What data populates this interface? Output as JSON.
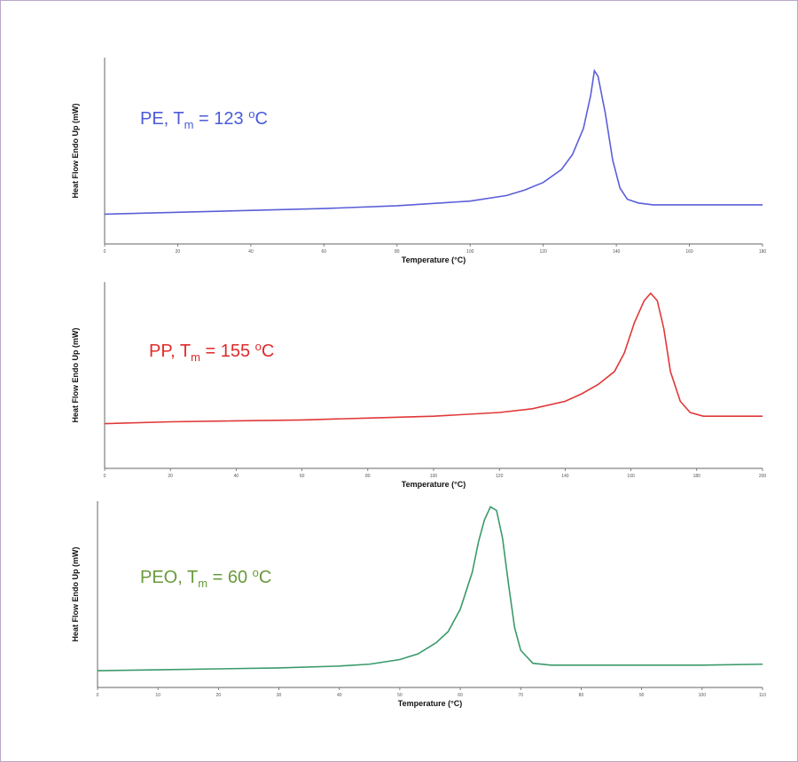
{
  "chart_data": [
    {
      "type": "line",
      "ylabel": "Heat Flow Endo Up (mW)",
      "xlabel": "Temperature (°C)",
      "annotation": {
        "prefix": "PE, T",
        "sub": "m",
        "mid": " = 123 ",
        "sup": "o",
        "suffix": "C",
        "color": "#4a5bd8"
      },
      "x": [
        0,
        20,
        40,
        60,
        80,
        100,
        110,
        115,
        120,
        125,
        128,
        131,
        133,
        134,
        135,
        137,
        139,
        141,
        143,
        146,
        150,
        160,
        180
      ],
      "series": [
        {
          "color": "#5a5fd8",
          "values": [
            16,
            17,
            18,
            19,
            20.5,
            23,
            26,
            29,
            33,
            40,
            48,
            62,
            80,
            93,
            90,
            70,
            45,
            30,
            24,
            22,
            21,
            21,
            21
          ]
        }
      ],
      "xlim": [
        0,
        180
      ],
      "xticks": [
        0,
        20,
        40,
        60,
        80,
        100,
        120,
        140,
        160,
        180
      ],
      "ylim": [
        0,
        100
      ]
    },
    {
      "type": "line",
      "ylabel": "Heat Flow Endo Up (mW)",
      "xlabel": "Temperature (°C)",
      "annotation": {
        "prefix": "PP, T",
        "sub": "m",
        "mid": " = 155 ",
        "sup": "o",
        "suffix": "C",
        "color": "#e02a2a"
      },
      "x": [
        0,
        20,
        40,
        60,
        80,
        100,
        120,
        130,
        140,
        145,
        150,
        155,
        158,
        161,
        164,
        166,
        168,
        170,
        172,
        175,
        178,
        182,
        190,
        200
      ],
      "series": [
        {
          "color": "#e03838",
          "values": [
            24,
            25,
            25.5,
            26,
            27,
            28,
            30,
            32,
            36,
            40,
            45,
            52,
            62,
            78,
            90,
            94,
            90,
            75,
            52,
            36,
            30,
            28,
            28,
            28
          ]
        }
      ],
      "xlim": [
        0,
        200
      ],
      "xticks": [
        0,
        20,
        40,
        60,
        80,
        100,
        120,
        140,
        160,
        180,
        200
      ],
      "ylim": [
        0,
        100
      ]
    },
    {
      "type": "line",
      "ylabel": "Heat Flow Endo Up (mW)",
      "xlabel": "Temperature (°C)",
      "annotation": {
        "prefix": "PEO, T",
        "sub": "m",
        "mid": " = 60 ",
        "sup": "o",
        "suffix": "C",
        "color": "#6a9a3c"
      },
      "x": [
        0,
        10,
        20,
        30,
        40,
        45,
        50,
        53,
        56,
        58,
        60,
        62,
        63,
        64,
        65,
        66,
        67,
        68,
        69,
        70,
        72,
        75,
        85,
        100,
        110
      ],
      "series": [
        {
          "color": "#3a9a6a",
          "values": [
            9,
            9.5,
            10,
            10.5,
            11.5,
            12.5,
            15,
            18,
            24,
            30,
            42,
            62,
            78,
            90,
            97,
            95,
            80,
            55,
            32,
            20,
            13,
            12,
            12,
            12,
            12.5
          ]
        }
      ],
      "xlim": [
        0,
        110
      ],
      "xticks": [
        0,
        10,
        20,
        30,
        40,
        50,
        60,
        70,
        80,
        90,
        100,
        110
      ],
      "ylim": [
        0,
        100
      ]
    }
  ]
}
